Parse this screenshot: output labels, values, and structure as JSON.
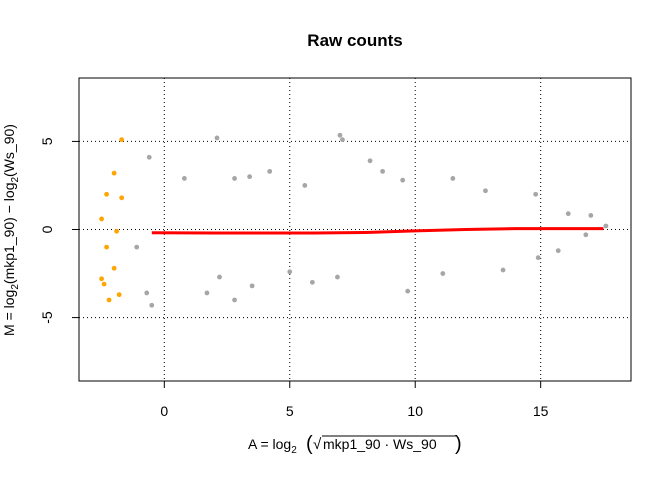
{
  "chart_data": {
    "type": "scatter",
    "title": "Raw counts",
    "xlabel": {
      "prefix": "A = log",
      "sub": "2",
      "radicand": "mkp1_90 · Ws_90"
    },
    "ylabel": {
      "part1": "M = log",
      "sub1": "2",
      "part2": "(mkp1_90) − log",
      "sub2": "2",
      "part3": "(Ws_90)"
    },
    "xlim": [
      -3.4,
      18.6
    ],
    "ylim": [
      -8.6,
      8.6
    ],
    "xticks": [
      0,
      5,
      10,
      15
    ],
    "xtick_labels": [
      "0",
      "5",
      "10",
      "15"
    ],
    "yticks": [
      -5,
      0,
      5
    ],
    "ytick_labels": [
      "-5",
      "0",
      "5"
    ],
    "grid": true,
    "grid_x": [
      0,
      5,
      10,
      15
    ],
    "grid_y": [
      -5,
      0,
      5
    ],
    "colors": {
      "points": "#a6a6a6",
      "zero_count_points": "#ffa500",
      "trend": "#ff0000"
    },
    "series": [
      {
        "role": "points",
        "points": [
          [
            2.1,
            5.2
          ],
          [
            7.0,
            5.35
          ],
          [
            7.1,
            5.1
          ],
          [
            8.2,
            3.9
          ],
          [
            8.7,
            3.3
          ],
          [
            3.4,
            3.0
          ],
          [
            4.2,
            3.3
          ],
          [
            -0.6,
            4.1
          ],
          [
            0.8,
            2.9
          ],
          [
            2.8,
            2.9
          ],
          [
            11.5,
            2.9
          ],
          [
            5.6,
            2.5
          ],
          [
            9.5,
            2.8
          ],
          [
            12.8,
            2.2
          ],
          [
            14.8,
            2.0
          ],
          [
            16.1,
            0.9
          ],
          [
            17.0,
            0.8
          ],
          [
            17.6,
            0.2
          ],
          [
            16.8,
            -0.3
          ],
          [
            2.2,
            -2.7
          ],
          [
            3.5,
            -3.2
          ],
          [
            2.8,
            -4.0
          ],
          [
            -1.1,
            -1.0
          ],
          [
            -0.7,
            -3.6
          ],
          [
            5.0,
            -2.4
          ],
          [
            5.9,
            -3.0
          ],
          [
            9.7,
            -3.5
          ],
          [
            13.5,
            -2.3
          ],
          [
            14.9,
            -1.6
          ],
          [
            15.7,
            -1.2
          ],
          [
            -0.5,
            -4.3
          ],
          [
            1.7,
            -3.6
          ],
          [
            6.9,
            -2.7
          ],
          [
            11.1,
            -2.5
          ]
        ]
      },
      {
        "role": "zero_count_points",
        "points": [
          [
            -2.3,
            2.0
          ],
          [
            -1.7,
            1.8
          ],
          [
            -2.5,
            0.6
          ],
          [
            -1.9,
            -0.1
          ],
          [
            -2.3,
            -1.0
          ],
          [
            -2.0,
            -2.2
          ],
          [
            -2.4,
            -3.1
          ],
          [
            -1.8,
            -3.7
          ],
          [
            -1.7,
            5.1
          ],
          [
            -2.2,
            -4.0
          ],
          [
            -2.0,
            3.2
          ],
          [
            -2.5,
            -2.8
          ]
        ]
      }
    ],
    "trend": {
      "x": [
        -0.5,
        2,
        4,
        6,
        8,
        10,
        12,
        14,
        16,
        17.5
      ],
      "y": [
        -0.18,
        -0.2,
        -0.2,
        -0.2,
        -0.17,
        -0.08,
        0.0,
        0.05,
        0.05,
        0.05
      ]
    }
  }
}
